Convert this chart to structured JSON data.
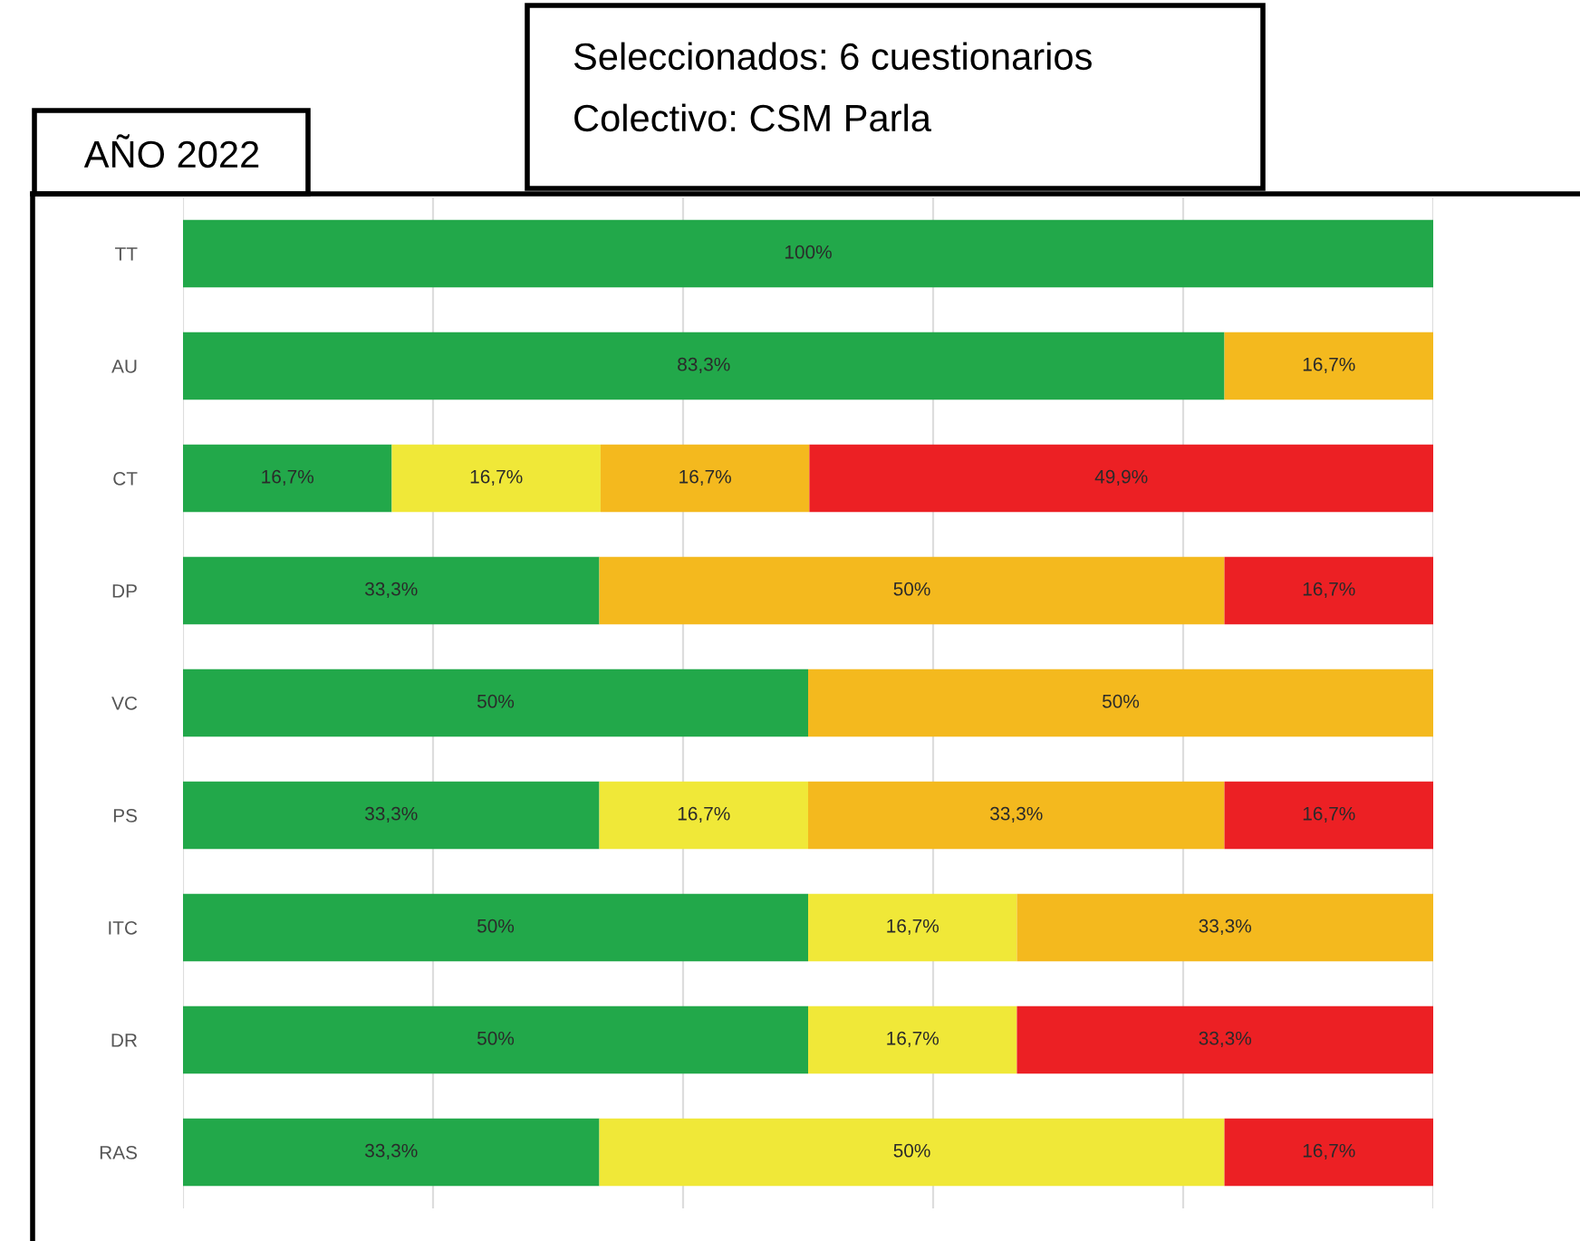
{
  "chart_data": {
    "type": "bar",
    "orientation": "horizontal",
    "stacked": true,
    "title": "AÑO 2022",
    "annotations": [
      "Seleccionados: 6 cuestionarios",
      "Colectivo: CSM Parla"
    ],
    "categories": [
      "TT",
      "AU",
      "CT",
      "DP",
      "VC",
      "PS",
      "ITC",
      "DR",
      "RAS"
    ],
    "series": [
      {
        "color": "#22a84a",
        "values": [
          100,
          83.3,
          16.7,
          33.3,
          50,
          33.3,
          50,
          50,
          33.3
        ],
        "value_labels": [
          "100%",
          "83,3%",
          "16,7%",
          "33,3%",
          "50%",
          "33,3%",
          "50%",
          "50%",
          "33,3%"
        ]
      },
      {
        "color": "#f0e838",
        "values": [
          null,
          null,
          16.7,
          null,
          null,
          16.7,
          16.7,
          16.7,
          50
        ],
        "value_labels": [
          null,
          null,
          "16,7%",
          null,
          null,
          "16,7%",
          "16,7%",
          "16,7%",
          "50%"
        ]
      },
      {
        "color": "#f4b91e",
        "values": [
          null,
          16.7,
          16.7,
          50,
          50,
          33.3,
          33.3,
          null,
          null
        ],
        "value_labels": [
          null,
          "16,7%",
          "16,7%",
          "50%",
          "50%",
          "33,3%",
          "33,3%",
          null,
          null
        ]
      },
      {
        "color": "#ec2024",
        "values": [
          null,
          null,
          49.9,
          16.7,
          null,
          16.7,
          null,
          33.3,
          16.7
        ],
        "value_labels": [
          null,
          null,
          "49,9%",
          "16,7%",
          null,
          "16,7%",
          null,
          "33,3%",
          "16,7%"
        ]
      }
    ],
    "xlim": [
      0,
      100
    ],
    "xticks": [
      {
        "value": 0,
        "label": null
      },
      {
        "value": 20,
        "label": null
      },
      {
        "value": 40,
        "label": null
      },
      {
        "value": 60,
        "label": null
      },
      {
        "value": 80,
        "label": null
      },
      {
        "value": 100,
        "label": null
      }
    ],
    "tick_labels": "y",
    "grid": "x"
  }
}
